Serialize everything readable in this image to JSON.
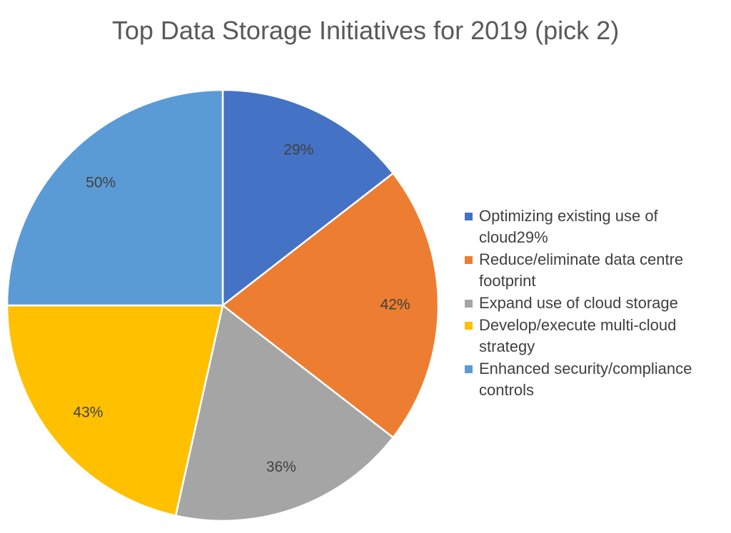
{
  "chart_data": {
    "type": "pie",
    "title": "Top Data Storage Initiatives for 2019 (pick 2)",
    "categories": [
      "Optimizing existing use of cloud29%",
      "Reduce/eliminate data centre footprint",
      "Expand use of cloud storage",
      "Develop/execute multi-cloud strategy",
      "Enhanced security/compliance controls"
    ],
    "values": [
      29,
      42,
      36,
      43,
      50
    ],
    "data_labels": [
      "29%",
      "42%",
      "36%",
      "43%",
      "50%"
    ],
    "colors": [
      "#4472C4",
      "#ED7D31",
      "#A5A5A5",
      "#FFC000",
      "#5B9BD5"
    ],
    "legend_position": "right"
  }
}
